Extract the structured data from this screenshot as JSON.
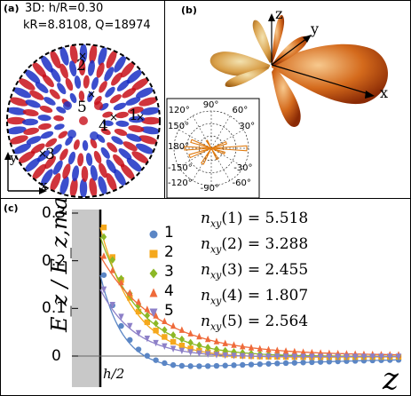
{
  "panel_a": {
    "label": "(a)",
    "header_line1": "3D: h/R=0.30",
    "header_line2": "kR=8.8108, Q=18974",
    "points": [
      {
        "name": "1"
      },
      {
        "name": "2"
      },
      {
        "name": "3"
      },
      {
        "name": "4"
      },
      {
        "name": "5"
      }
    ],
    "axis_x": "x",
    "axis_y": "y"
  },
  "panel_b": {
    "label": "(b)",
    "axis_x": "x",
    "axis_y": "y",
    "axis_z": "z",
    "polar_ticks": [
      "90°",
      "120°",
      "150°",
      "180°",
      "-150°",
      "-120°",
      "-90°",
      "-60°",
      "-30°",
      "30°",
      "60°"
    ]
  },
  "panel_c": {
    "label": "(c)",
    "ylabel": "E_z / E_z,max",
    "xlabel": "z",
    "h_label": "h/2",
    "nxy_label": "n_xy",
    "colors": {
      "1": "#5b86c5",
      "2": "#f5a81c",
      "3": "#8cb826",
      "4": "#ef6a3a",
      "5": "#8d80c8"
    },
    "chart_data": {
      "type": "scatter",
      "title": "",
      "xlabel": "z",
      "ylabel": "E_z/E_z,max",
      "yticks": [
        "0.3",
        "0.2",
        "0.1",
        "0"
      ],
      "ylim": [
        -0.03,
        0.32
      ],
      "series": [
        {
          "name": "1",
          "marker": "circle",
          "n_xy": "5.518",
          "amplitude": 0.17,
          "decay": 0.1,
          "undershoot": -0.028
        },
        {
          "name": "2",
          "marker": "square",
          "n_xy": "3.288",
          "amplitude": 0.27,
          "decay": 0.15,
          "undershoot": -0.006
        },
        {
          "name": "3",
          "marker": "diamond",
          "n_xy": "2.455",
          "amplitude": 0.25,
          "decay": 0.18,
          "undershoot": -0.002
        },
        {
          "name": "4",
          "marker": "triangle-up",
          "n_xy": "1.807",
          "amplitude": 0.21,
          "decay": 0.24,
          "undershoot": 0.006
        },
        {
          "name": "5",
          "marker": "triangle-down",
          "n_xy": "2.564",
          "amplitude": 0.14,
          "decay": 0.15,
          "undershoot": -0.003
        }
      ]
    }
  }
}
